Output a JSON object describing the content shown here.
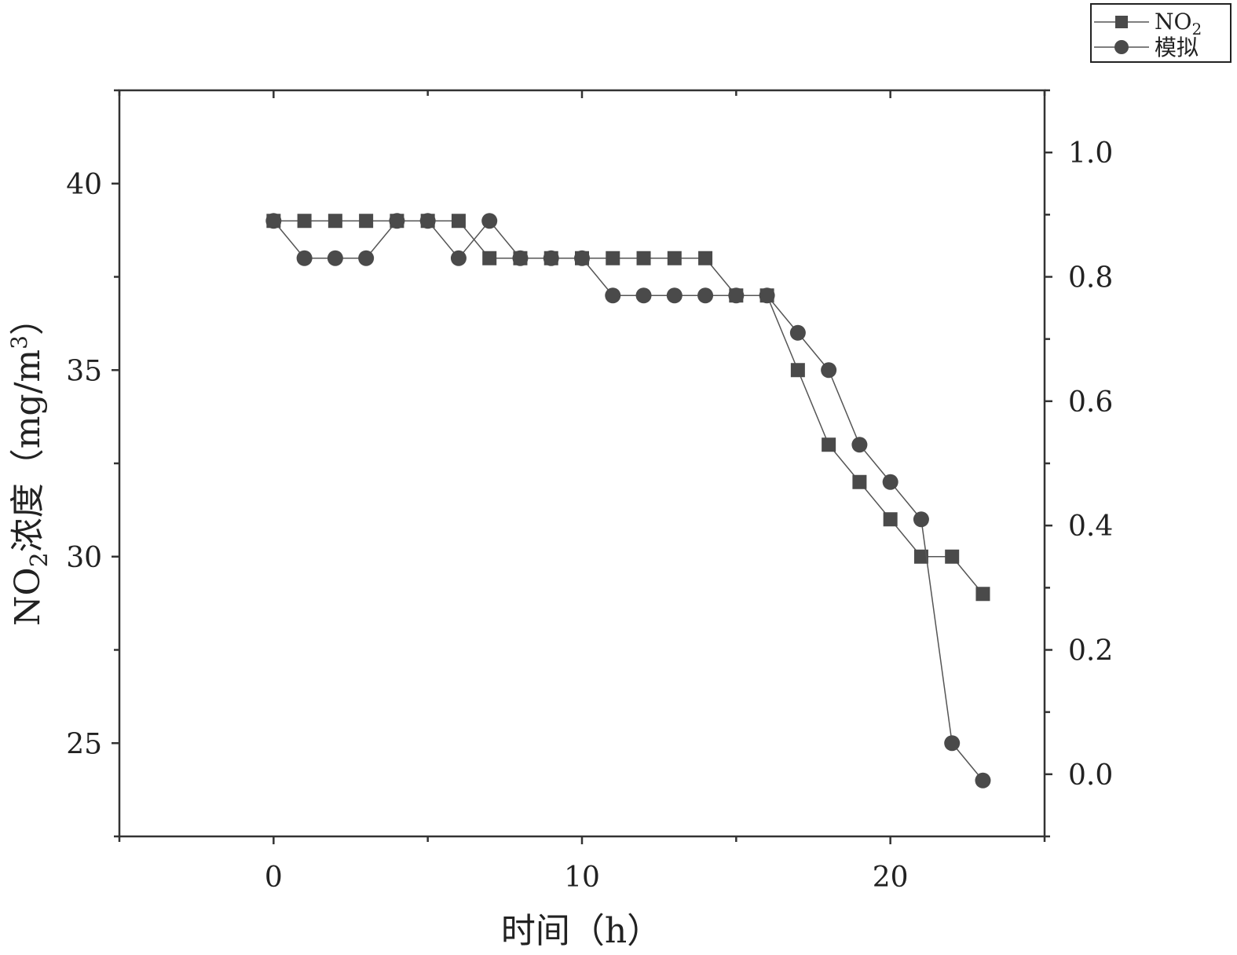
{
  "chart_data": {
    "type": "line",
    "xlabel": "时间（h）",
    "ylabel_main": "NO",
    "ylabel_sub": "2",
    "ylabel_rest": "浓度（mg/m",
    "ylabel_sup": "3",
    "ylabel_close": "）",
    "xlim": [
      -5,
      25
    ],
    "ylim": [
      22.5,
      42.5
    ],
    "y2lim": [
      -0.1,
      1.1
    ],
    "x_ticks": [
      0,
      10,
      20
    ],
    "y_ticks": [
      25,
      30,
      35,
      40
    ],
    "y2_ticks": [
      "0.0",
      "0.2",
      "0.4",
      "0.6",
      "0.8",
      "1.0"
    ],
    "series": [
      {
        "name": "NO",
        "name_sub": "2",
        "marker": "square",
        "x": [
          0,
          1,
          2,
          3,
          4,
          5,
          6,
          7,
          8,
          9,
          10,
          11,
          12,
          13,
          14,
          15,
          16,
          17,
          18,
          19,
          20,
          21,
          22,
          23
        ],
        "values": [
          39,
          39,
          39,
          39,
          39,
          39,
          39,
          38,
          38,
          38,
          38,
          38,
          38,
          38,
          38,
          37,
          37,
          35,
          33,
          32,
          31,
          30,
          30,
          29
        ]
      },
      {
        "name": "模拟",
        "marker": "circle",
        "x": [
          0,
          1,
          2,
          3,
          4,
          5,
          6,
          7,
          8,
          9,
          10,
          11,
          12,
          13,
          14,
          15,
          16,
          17,
          18,
          19,
          20,
          21,
          22,
          23
        ],
        "values": [
          39,
          38,
          38,
          38,
          39,
          39,
          38,
          39,
          38,
          38,
          38,
          37,
          37,
          37,
          37,
          37,
          37,
          36,
          35,
          33,
          32,
          31,
          25,
          24
        ]
      }
    ],
    "legend_position": "top-right",
    "grid": false
  }
}
